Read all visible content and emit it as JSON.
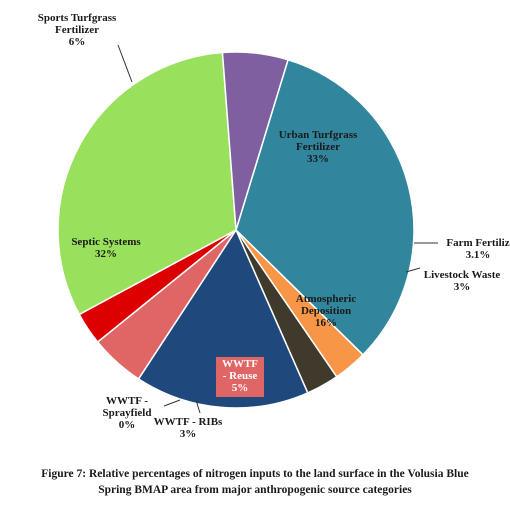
{
  "chart_data": {
    "type": "pie",
    "slices": [
      {
        "name": "Urban Turfgrass Fertilizer",
        "value": 33,
        "label_lines": [
          "Urban Turfgrass",
          "Fertilizer",
          "33%"
        ],
        "color": "#31859c"
      },
      {
        "name": "Farm Fertilizer",
        "value": 3.1,
        "label_lines": [
          "Farm Fertiliz",
          "3.1%"
        ],
        "color": "#f79646"
      },
      {
        "name": "Livestock Waste",
        "value": 3,
        "label_lines": [
          "Livestock Waste",
          "3%"
        ],
        "color": "#3f3a2c"
      },
      {
        "name": "Atmospheric Deposition",
        "value": 16,
        "label_lines": [
          "Atmospheric",
          "Deposition",
          "16%"
        ],
        "color": "#1f497d"
      },
      {
        "name": "WWTF - Reuse",
        "value": 5,
        "label_lines": [
          "WWTF",
          "- Reuse",
          "5%"
        ],
        "color": "#e06666"
      },
      {
        "name": "WWTF - RIBs",
        "value": 3,
        "label_lines": [
          "WWTF - RIBs",
          "3%"
        ],
        "color": "#dd0000"
      },
      {
        "name": "WWTF - Sprayfield",
        "value": 0,
        "label_lines": [
          "WWTF -",
          "Sprayfield",
          "0%"
        ],
        "color": "#c0504d"
      },
      {
        "name": "Septic Systems",
        "value": 32,
        "label_lines": [
          "Septic Systems",
          "32%"
        ],
        "color": "#99e05c"
      },
      {
        "name": "Sports Turfgrass Fertilizer",
        "value": 6,
        "label_lines": [
          "Sports Turfgrass",
          "Fertilizer",
          "6%"
        ],
        "color": "#7f5f9f"
      }
    ],
    "caption_lines": [
      "Figure 7: Relative percentages of nitrogen inputs to the land surface in the Volusia Blue",
      "Spring BMAP area from major anthropogenic source categories"
    ]
  }
}
